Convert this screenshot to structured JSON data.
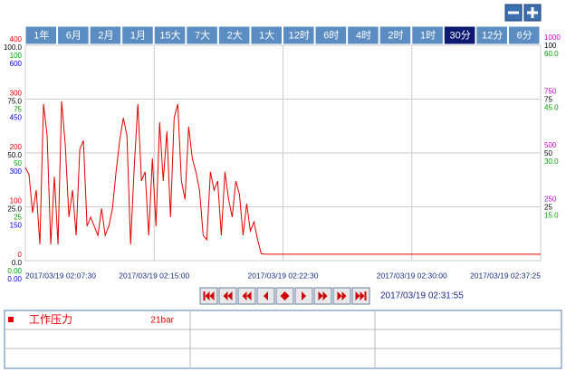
{
  "toolbar": {
    "ranges": [
      "1年",
      "6月",
      "2月",
      "1月",
      "15大",
      "7大",
      "2大",
      "1大",
      "12时",
      "6时",
      "4时",
      "2时",
      "1时",
      "30分",
      "12分",
      "6分"
    ],
    "selected": 13
  },
  "cursor_time": "2017/03/19 02:31:55",
  "reading": "21bar",
  "chart_data": {
    "type": "line",
    "xticks": [
      "2017/03/19 02:07:30",
      "2017/03/19 02:15:00",
      "2017/03/19 02:22:30",
      "2017/03/19 02:30:00",
      "2017/03/19 02:37:25"
    ],
    "grid": true,
    "y_axes": [
      {
        "side": "left",
        "color": "#e00000",
        "ylim": [
          0,
          400
        ],
        "yticks": [
          0,
          100,
          200,
          300,
          400
        ]
      },
      {
        "side": "left",
        "color": "#000000",
        "ylim": [
          0,
          100
        ],
        "yticks": [
          {
            "value": 0,
            "label": "0.0"
          },
          {
            "value": 25,
            "label": "25.0"
          },
          {
            "value": 50,
            "label": "50.0"
          },
          {
            "value": 75,
            "label": "75.0"
          },
          {
            "value": 100,
            "label": "100.0"
          }
        ]
      },
      {
        "side": "left",
        "color": "#00a000",
        "ylim": [
          0,
          100
        ],
        "yticks": [
          {
            "value": 0,
            "label": "0.00"
          },
          25,
          50,
          75,
          100
        ]
      },
      {
        "side": "left",
        "color": "#0000d0",
        "ylim": [
          0,
          600
        ],
        "yticks": [
          {
            "value": 0,
            "label": "0.00"
          },
          150,
          300,
          450,
          600
        ]
      },
      {
        "side": "right",
        "color": "#d000d0",
        "ylim": [
          0,
          1000
        ],
        "yticks": [
          250,
          500,
          750,
          1000
        ]
      },
      {
        "side": "right",
        "color": "#000000",
        "ylim": [
          0,
          100
        ],
        "yticks": [
          25,
          50,
          75,
          100
        ]
      },
      {
        "side": "right",
        "color": "#00a000",
        "ylim": [
          0,
          60
        ],
        "yticks": [
          {
            "value": 15,
            "label": "15.0"
          },
          {
            "value": 30,
            "label": "30.0"
          },
          {
            "value": 45,
            "label": "45.0"
          },
          {
            "value": 60,
            "label": "60.0"
          }
        ]
      }
    ],
    "series": [
      {
        "name": "工作压力",
        "color": "#e00000",
        "axis": 0,
        "values": [
          173,
          160,
          89,
          131,
          30,
          291,
          232,
          30,
          156,
          30,
          296,
          215,
          81,
          131,
          47,
          207,
          223,
          64,
          81,
          64,
          47,
          97,
          47,
          64,
          97,
          165,
          223,
          265,
          232,
          30,
          173,
          291,
          148,
          165,
          47,
          190,
          64,
          257,
          148,
          240,
          81,
          265,
          291,
          148,
          114,
          249,
          190,
          165,
          131,
          47,
          39,
          165,
          131,
          148,
          47,
          165,
          114,
          81,
          148,
          123,
          47,
          106,
          55,
          72,
          39,
          13,
          12,
          12,
          12,
          12,
          12,
          12,
          12,
          12,
          12,
          12,
          12,
          12,
          12,
          12,
          12,
          12,
          12,
          12,
          12,
          12,
          12,
          12,
          12,
          12,
          12,
          12,
          12,
          12,
          12,
          12,
          12,
          12,
          12,
          12,
          12,
          12,
          12,
          12,
          12,
          12,
          12,
          12,
          12,
          12,
          12,
          12,
          12,
          12,
          12,
          12,
          12,
          12,
          12,
          12,
          12,
          12,
          12,
          12,
          12,
          12,
          12,
          12,
          12,
          12,
          12,
          12,
          12,
          12,
          12,
          12,
          12,
          12,
          12,
          12,
          12,
          12,
          12
        ]
      }
    ]
  }
}
